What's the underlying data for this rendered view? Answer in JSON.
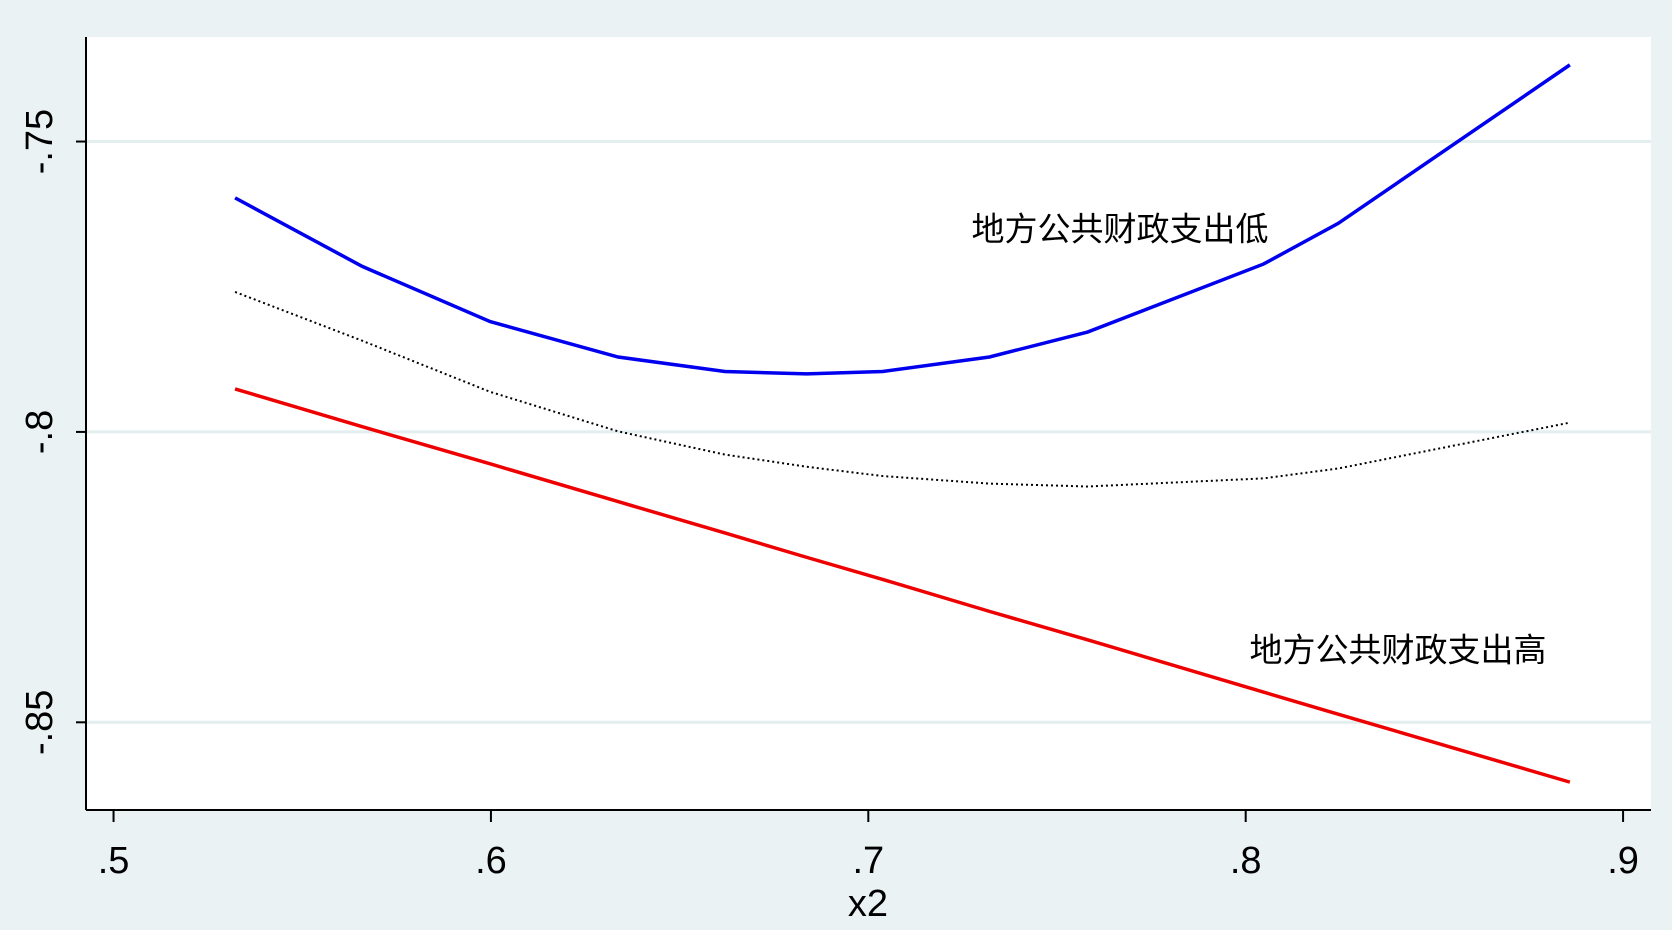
{
  "chart_data": {
    "type": "line",
    "x_label": "x2",
    "x": [
      0.5322,
      0.5659,
      0.5998,
      0.6337,
      0.662,
      0.6837,
      0.7038,
      0.7321,
      0.7581,
      0.8047,
      0.8245,
      0.8859
    ],
    "series": [
      {
        "color": "#0000ee",
        "style": "solid",
        "values": [
          -0.7597,
          -0.7715,
          -0.781,
          -0.7871,
          -0.7896,
          -0.79,
          -0.7896,
          -0.7871,
          -0.7828,
          -0.7711,
          -0.7641,
          -0.7368
        ]
      },
      {
        "color": "#000000",
        "style": "dotted",
        "values": [
          -0.7759,
          -0.7843,
          -0.7931,
          -0.7999,
          -0.8039,
          -0.806,
          -0.8076,
          -0.8089,
          -0.8094,
          -0.808,
          -0.8063,
          -0.7984
        ]
      },
      {
        "color": "#ee0000",
        "style": "solid",
        "values": [
          -0.7926,
          -0.7991,
          -0.8055,
          -0.812,
          -0.8174,
          -0.8216,
          -0.8254,
          -0.8309,
          -0.8358,
          -0.8448,
          -0.8486,
          -0.8603
        ]
      }
    ],
    "annotations": [
      "地方公共财政支出低",
      "地方公共财政支出高"
    ],
    "xlim": [
      0.4927,
      0.9074
    ],
    "ylim": [
      -0.8651,
      -0.732
    ],
    "xticks": [
      {
        "value": 0.5,
        "label": ".5"
      },
      {
        "value": 0.6,
        "label": ".6"
      },
      {
        "value": 0.7,
        "label": ".7"
      },
      {
        "value": 0.8,
        "label": ".8"
      },
      {
        "value": 0.9,
        "label": ".9"
      }
    ],
    "yticks": [
      {
        "value": -0.85,
        "label": "-.85"
      },
      {
        "value": -0.8,
        "label": "-.8"
      },
      {
        "value": -0.75,
        "label": "-.75"
      }
    ],
    "grid": true
  }
}
